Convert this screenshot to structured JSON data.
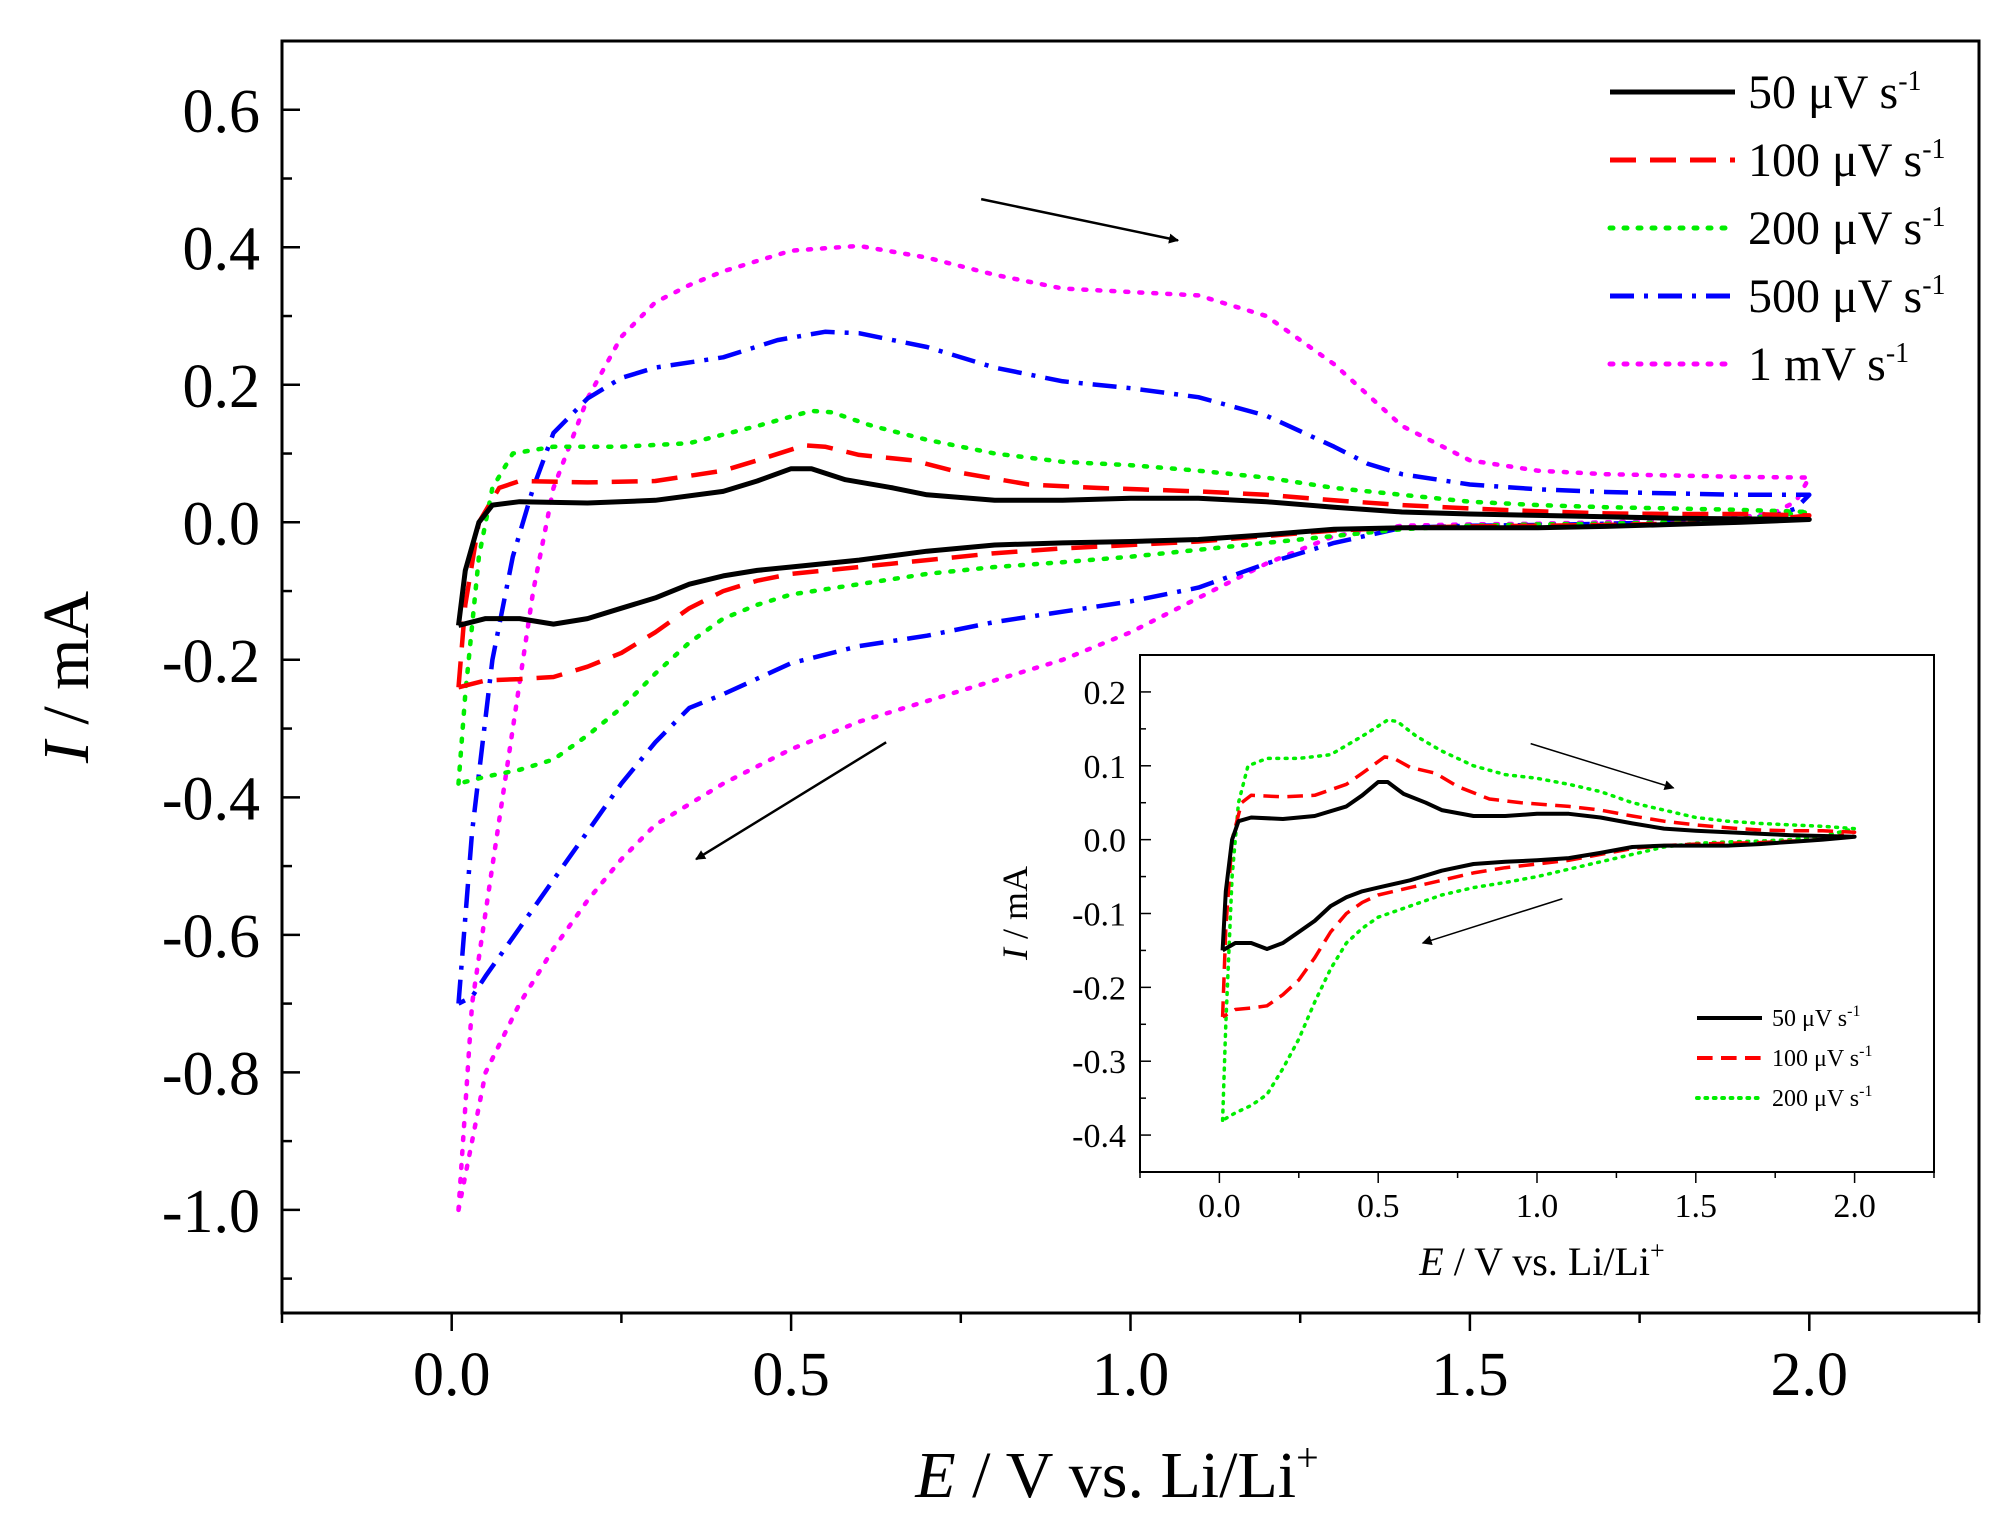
{
  "chart_data": {
    "type": "line",
    "title": "",
    "xlabel": {
      "italic": "E",
      "rest": " / V vs. Li/Li",
      "sup": "+"
    },
    "ylabel": {
      "italic": "I",
      "rest": " / mA"
    },
    "xlim": [
      -0.25,
      2.25
    ],
    "ylim": [
      -1.15,
      0.7
    ],
    "x_ticks": [
      0.0,
      0.5,
      1.0,
      1.5,
      2.0
    ],
    "x_tick_labels": [
      "0.0",
      "0.5",
      "1.0",
      "1.5",
      "2.0"
    ],
    "y_ticks": [
      0.6,
      0.4,
      0.2,
      0.0,
      -0.2,
      -0.4,
      -0.6,
      -0.8,
      -1.0
    ],
    "y_tick_labels": [
      "0.6",
      "0.4",
      "0.2",
      "0.0",
      "-0.2",
      "-0.4",
      "-0.6",
      "-0.8",
      "-1.0"
    ],
    "legend_position": "top-right",
    "arrows": [
      {
        "direction": "anodic",
        "from": [
          0.78,
          0.47
        ],
        "to": [
          1.07,
          0.41
        ]
      },
      {
        "direction": "cathodic",
        "from": [
          0.64,
          -0.32
        ],
        "to": [
          0.36,
          -0.49
        ]
      }
    ],
    "series": [
      {
        "name": "50 μV s",
        "unit_sup": "-1",
        "color": "#000000",
        "style": "solid",
        "anodic": [
          [
            0.01,
            -0.15
          ],
          [
            0.02,
            -0.07
          ],
          [
            0.04,
            0.0
          ],
          [
            0.06,
            0.025
          ],
          [
            0.1,
            0.03
          ],
          [
            0.2,
            0.028
          ],
          [
            0.3,
            0.032
          ],
          [
            0.4,
            0.045
          ],
          [
            0.45,
            0.06
          ],
          [
            0.5,
            0.078
          ],
          [
            0.53,
            0.078
          ],
          [
            0.58,
            0.062
          ],
          [
            0.65,
            0.05
          ],
          [
            0.7,
            0.04
          ],
          [
            0.8,
            0.032
          ],
          [
            0.9,
            0.032
          ],
          [
            1.0,
            0.035
          ],
          [
            1.1,
            0.035
          ],
          [
            1.2,
            0.03
          ],
          [
            1.3,
            0.022
          ],
          [
            1.4,
            0.015
          ],
          [
            1.5,
            0.012
          ],
          [
            1.6,
            0.01
          ],
          [
            1.7,
            0.008
          ],
          [
            1.8,
            0.006
          ],
          [
            1.9,
            0.005
          ],
          [
            2.0,
            0.004
          ]
        ],
        "cathodic": [
          [
            2.0,
            0.004
          ],
          [
            1.9,
            0.0
          ],
          [
            1.8,
            -0.003
          ],
          [
            1.7,
            -0.006
          ],
          [
            1.6,
            -0.008
          ],
          [
            1.5,
            -0.008
          ],
          [
            1.4,
            -0.008
          ],
          [
            1.3,
            -0.01
          ],
          [
            1.2,
            -0.018
          ],
          [
            1.1,
            -0.025
          ],
          [
            1.0,
            -0.028
          ],
          [
            0.9,
            -0.03
          ],
          [
            0.8,
            -0.033
          ],
          [
            0.7,
            -0.042
          ],
          [
            0.6,
            -0.055
          ],
          [
            0.5,
            -0.065
          ],
          [
            0.45,
            -0.07
          ],
          [
            0.4,
            -0.078
          ],
          [
            0.35,
            -0.09
          ],
          [
            0.3,
            -0.11
          ],
          [
            0.25,
            -0.125
          ],
          [
            0.2,
            -0.14
          ],
          [
            0.15,
            -0.148
          ],
          [
            0.1,
            -0.14
          ],
          [
            0.05,
            -0.14
          ],
          [
            0.01,
            -0.15
          ]
        ]
      },
      {
        "name": "100 μV s",
        "unit_sup": "-1",
        "color": "#ff0000",
        "style": "dashed",
        "anodic": [
          [
            0.01,
            -0.24
          ],
          [
            0.02,
            -0.12
          ],
          [
            0.04,
            0.0
          ],
          [
            0.07,
            0.05
          ],
          [
            0.1,
            0.06
          ],
          [
            0.2,
            0.058
          ],
          [
            0.3,
            0.06
          ],
          [
            0.4,
            0.075
          ],
          [
            0.45,
            0.09
          ],
          [
            0.52,
            0.112
          ],
          [
            0.55,
            0.11
          ],
          [
            0.6,
            0.098
          ],
          [
            0.68,
            0.09
          ],
          [
            0.75,
            0.072
          ],
          [
            0.85,
            0.055
          ],
          [
            0.95,
            0.05
          ],
          [
            1.1,
            0.045
          ],
          [
            1.2,
            0.04
          ],
          [
            1.3,
            0.032
          ],
          [
            1.4,
            0.025
          ],
          [
            1.5,
            0.02
          ],
          [
            1.6,
            0.016
          ],
          [
            1.7,
            0.013
          ],
          [
            1.8,
            0.012
          ],
          [
            1.9,
            0.012
          ],
          [
            2.0,
            0.01
          ]
        ],
        "cathodic": [
          [
            2.0,
            0.01
          ],
          [
            1.9,
            0.0
          ],
          [
            1.8,
            -0.002
          ],
          [
            1.7,
            -0.004
          ],
          [
            1.6,
            -0.005
          ],
          [
            1.5,
            -0.006
          ],
          [
            1.4,
            -0.008
          ],
          [
            1.3,
            -0.012
          ],
          [
            1.2,
            -0.02
          ],
          [
            1.1,
            -0.028
          ],
          [
            1.0,
            -0.033
          ],
          [
            0.9,
            -0.038
          ],
          [
            0.8,
            -0.045
          ],
          [
            0.7,
            -0.055
          ],
          [
            0.6,
            -0.065
          ],
          [
            0.5,
            -0.075
          ],
          [
            0.45,
            -0.085
          ],
          [
            0.4,
            -0.1
          ],
          [
            0.35,
            -0.125
          ],
          [
            0.3,
            -0.16
          ],
          [
            0.25,
            -0.19
          ],
          [
            0.2,
            -0.21
          ],
          [
            0.15,
            -0.225
          ],
          [
            0.1,
            -0.228
          ],
          [
            0.05,
            -0.23
          ],
          [
            0.01,
            -0.24
          ]
        ]
      },
      {
        "name": "200 μV s",
        "unit_sup": "-1",
        "color": "#00ee00",
        "style": "dotted",
        "anodic": [
          [
            0.01,
            -0.38
          ],
          [
            0.02,
            -0.25
          ],
          [
            0.04,
            -0.05
          ],
          [
            0.06,
            0.05
          ],
          [
            0.09,
            0.1
          ],
          [
            0.15,
            0.11
          ],
          [
            0.25,
            0.11
          ],
          [
            0.35,
            0.115
          ],
          [
            0.45,
            0.14
          ],
          [
            0.53,
            0.162
          ],
          [
            0.56,
            0.16
          ],
          [
            0.62,
            0.14
          ],
          [
            0.7,
            0.12
          ],
          [
            0.8,
            0.1
          ],
          [
            0.9,
            0.088
          ],
          [
            1.0,
            0.083
          ],
          [
            1.1,
            0.075
          ],
          [
            1.2,
            0.065
          ],
          [
            1.3,
            0.05
          ],
          [
            1.4,
            0.04
          ],
          [
            1.5,
            0.03
          ],
          [
            1.6,
            0.025
          ],
          [
            1.7,
            0.022
          ],
          [
            1.8,
            0.02
          ],
          [
            1.9,
            0.018
          ],
          [
            2.0,
            0.015
          ]
        ],
        "cathodic": [
          [
            2.0,
            0.015
          ],
          [
            1.9,
            0.005
          ],
          [
            1.8,
            0.0
          ],
          [
            1.7,
            -0.002
          ],
          [
            1.6,
            -0.003
          ],
          [
            1.5,
            -0.005
          ],
          [
            1.4,
            -0.01
          ],
          [
            1.3,
            -0.02
          ],
          [
            1.2,
            -0.03
          ],
          [
            1.1,
            -0.04
          ],
          [
            1.0,
            -0.05
          ],
          [
            0.9,
            -0.058
          ],
          [
            0.8,
            -0.065
          ],
          [
            0.7,
            -0.075
          ],
          [
            0.6,
            -0.09
          ],
          [
            0.5,
            -0.105
          ],
          [
            0.45,
            -0.12
          ],
          [
            0.4,
            -0.14
          ],
          [
            0.35,
            -0.175
          ],
          [
            0.3,
            -0.22
          ],
          [
            0.25,
            -0.27
          ],
          [
            0.2,
            -0.31
          ],
          [
            0.15,
            -0.345
          ],
          [
            0.1,
            -0.36
          ],
          [
            0.05,
            -0.37
          ],
          [
            0.01,
            -0.38
          ]
        ]
      },
      {
        "name": "500 μV s",
        "unit_sup": "-1",
        "color": "#0000ff",
        "style": "dashdot",
        "anodic": [
          [
            0.01,
            -0.7
          ],
          [
            0.03,
            -0.45
          ],
          [
            0.06,
            -0.2
          ],
          [
            0.09,
            -0.05
          ],
          [
            0.12,
            0.05
          ],
          [
            0.15,
            0.13
          ],
          [
            0.2,
            0.18
          ],
          [
            0.25,
            0.21
          ],
          [
            0.3,
            0.225
          ],
          [
            0.4,
            0.24
          ],
          [
            0.48,
            0.265
          ],
          [
            0.55,
            0.277
          ],
          [
            0.6,
            0.275
          ],
          [
            0.7,
            0.255
          ],
          [
            0.8,
            0.225
          ],
          [
            0.9,
            0.205
          ],
          [
            1.0,
            0.195
          ],
          [
            1.1,
            0.182
          ],
          [
            1.2,
            0.155
          ],
          [
            1.3,
            0.11
          ],
          [
            1.35,
            0.085
          ],
          [
            1.4,
            0.07
          ],
          [
            1.5,
            0.055
          ],
          [
            1.6,
            0.048
          ],
          [
            1.7,
            0.044
          ],
          [
            1.8,
            0.042
          ],
          [
            1.9,
            0.04
          ],
          [
            1.96,
            0.04
          ],
          [
            2.0,
            0.04
          ]
        ],
        "cathodic": [
          [
            2.0,
            0.04
          ],
          [
            1.98,
            0.02
          ],
          [
            1.95,
            0.01
          ],
          [
            1.9,
            0.005
          ],
          [
            1.8,
            0.0
          ],
          [
            1.7,
            -0.002
          ],
          [
            1.6,
            -0.004
          ],
          [
            1.5,
            -0.005
          ],
          [
            1.4,
            -0.008
          ],
          [
            1.3,
            -0.03
          ],
          [
            1.2,
            -0.06
          ],
          [
            1.1,
            -0.095
          ],
          [
            1.0,
            -0.115
          ],
          [
            0.9,
            -0.13
          ],
          [
            0.8,
            -0.145
          ],
          [
            0.7,
            -0.165
          ],
          [
            0.6,
            -0.18
          ],
          [
            0.5,
            -0.205
          ],
          [
            0.4,
            -0.25
          ],
          [
            0.35,
            -0.27
          ],
          [
            0.3,
            -0.32
          ],
          [
            0.25,
            -0.38
          ],
          [
            0.2,
            -0.45
          ],
          [
            0.15,
            -0.52
          ],
          [
            0.1,
            -0.59
          ],
          [
            0.05,
            -0.66
          ],
          [
            0.03,
            -0.69
          ],
          [
            0.01,
            -0.7
          ]
        ]
      },
      {
        "name": "1 mV s",
        "unit_sup": "-1",
        "color": "#ff00ff",
        "style": "dotted",
        "anodic": [
          [
            0.01,
            -1.0
          ],
          [
            0.03,
            -0.7
          ],
          [
            0.06,
            -0.5
          ],
          [
            0.09,
            -0.3
          ],
          [
            0.12,
            -0.1
          ],
          [
            0.15,
            0.05
          ],
          [
            0.2,
            0.18
          ],
          [
            0.25,
            0.27
          ],
          [
            0.3,
            0.32
          ],
          [
            0.35,
            0.345
          ],
          [
            0.4,
            0.365
          ],
          [
            0.5,
            0.395
          ],
          [
            0.6,
            0.402
          ],
          [
            0.7,
            0.385
          ],
          [
            0.8,
            0.36
          ],
          [
            0.9,
            0.34
          ],
          [
            1.0,
            0.335
          ],
          [
            1.1,
            0.33
          ],
          [
            1.2,
            0.3
          ],
          [
            1.3,
            0.23
          ],
          [
            1.4,
            0.14
          ],
          [
            1.5,
            0.09
          ],
          [
            1.6,
            0.075
          ],
          [
            1.7,
            0.07
          ],
          [
            1.8,
            0.068
          ],
          [
            1.9,
            0.066
          ],
          [
            2.0,
            0.065
          ]
        ],
        "cathodic": [
          [
            2.0,
            0.065
          ],
          [
            1.98,
            0.03
          ],
          [
            1.95,
            0.015
          ],
          [
            1.9,
            0.007
          ],
          [
            1.8,
            0.002
          ],
          [
            1.7,
            0.0
          ],
          [
            1.6,
            -0.002
          ],
          [
            1.5,
            -0.003
          ],
          [
            1.4,
            -0.005
          ],
          [
            1.3,
            -0.02
          ],
          [
            1.2,
            -0.06
          ],
          [
            1.1,
            -0.11
          ],
          [
            1.0,
            -0.16
          ],
          [
            0.9,
            -0.2
          ],
          [
            0.8,
            -0.23
          ],
          [
            0.7,
            -0.26
          ],
          [
            0.6,
            -0.29
          ],
          [
            0.5,
            -0.33
          ],
          [
            0.4,
            -0.38
          ],
          [
            0.3,
            -0.44
          ],
          [
            0.25,
            -0.49
          ],
          [
            0.2,
            -0.55
          ],
          [
            0.15,
            -0.62
          ],
          [
            0.1,
            -0.7
          ],
          [
            0.05,
            -0.8
          ],
          [
            0.03,
            -0.9
          ],
          [
            0.01,
            -1.0
          ]
        ]
      }
    ],
    "inset": {
      "type": "line",
      "xlabel": {
        "italic": "E",
        "rest": " / V vs. Li/Li",
        "sup": "+"
      },
      "ylabel": {
        "italic": "I",
        "rest": " / mA"
      },
      "xlim": [
        -0.25,
        2.25
      ],
      "ylim": [
        -0.45,
        0.25
      ],
      "x_ticks": [
        0.0,
        0.5,
        1.0,
        1.5,
        2.0
      ],
      "x_tick_labels": [
        "0.0",
        "0.5",
        "1.0",
        "1.5",
        "2.0"
      ],
      "y_ticks": [
        0.2,
        0.1,
        0.0,
        -0.1,
        -0.2,
        -0.3,
        -0.4
      ],
      "y_tick_labels": [
        "0.2",
        "0.1",
        "0.0",
        "-0.1",
        "-0.2",
        "-0.3",
        "-0.4"
      ],
      "legend_position": "bottom-right",
      "series_indices": [
        0,
        1,
        2
      ],
      "arrows": [
        {
          "direction": "anodic",
          "from": [
            0.98,
            0.13
          ],
          "to": [
            1.43,
            0.07
          ]
        },
        {
          "direction": "cathodic",
          "from": [
            1.08,
            -0.08
          ],
          "to": [
            0.64,
            -0.14
          ]
        }
      ]
    }
  }
}
